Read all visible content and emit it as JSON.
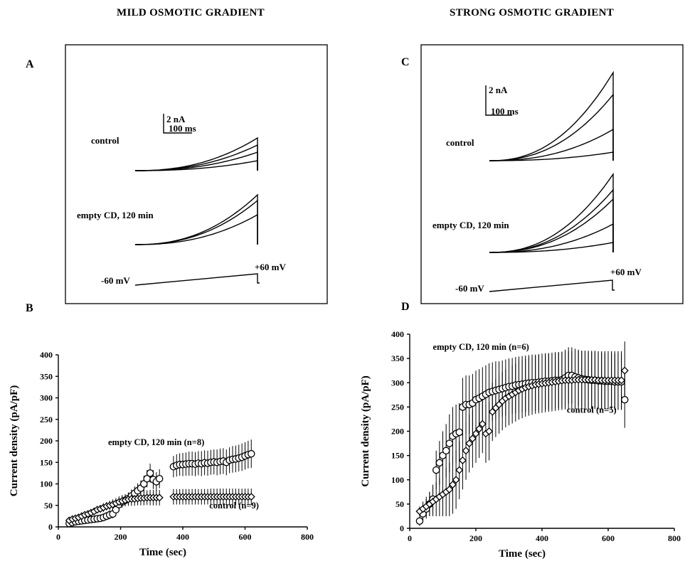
{
  "headings": {
    "left": "MILD OSMOTIC GRADIENT",
    "right": "STRONG OSMOTIC GRADIENT"
  },
  "panels": {
    "A": {
      "label": "A",
      "scalebar_current": "2 nA",
      "scalebar_time": "100 ms",
      "trace_label_1": "control",
      "trace_label_2": "empty CD, 120 min",
      "ramp_start": "-60 mV",
      "ramp_end": "+60 mV"
    },
    "B": {
      "label": "B"
    },
    "C": {
      "label": "C",
      "scalebar_current": "2 nA",
      "scalebar_time": "100 ms",
      "trace_label_1": "control",
      "trace_label_2": "empty CD, 120 min",
      "ramp_start": "-60 mV",
      "ramp_end": "+60 mV"
    },
    "D": {
      "label": "D"
    }
  },
  "chart_data": [
    {
      "type": "scatter",
      "panel": "B",
      "xlabel": "Time (sec)",
      "ylabel": "Current density (pA/pF)",
      "xlim": [
        0,
        800
      ],
      "ylim": [
        0,
        400
      ],
      "xticks": [
        0,
        200,
        400,
        600,
        800
      ],
      "yticks": [
        0,
        50,
        100,
        150,
        200,
        250,
        300,
        350,
        400
      ],
      "grid": false,
      "series": [
        {
          "name": "empty CD, 120 min (n=8)",
          "marker": "circle",
          "x": [
            35,
            45,
            55,
            65,
            75,
            85,
            95,
            105,
            115,
            125,
            135,
            145,
            155,
            165,
            175,
            185,
            195,
            205,
            215,
            225,
            235,
            245,
            255,
            265,
            275,
            285,
            295,
            305,
            315,
            325,
            370,
            380,
            390,
            400,
            410,
            420,
            430,
            440,
            450,
            460,
            470,
            480,
            490,
            500,
            510,
            520,
            530,
            540,
            550,
            560,
            570,
            580,
            590,
            600,
            610,
            620
          ],
          "y": [
            8,
            10,
            12,
            13,
            14,
            15,
            16,
            17,
            18,
            19,
            20,
            22,
            25,
            28,
            30,
            40,
            52,
            58,
            62,
            66,
            72,
            78,
            84,
            90,
            100,
            112,
            125,
            110,
            105,
            112,
            140,
            143,
            145,
            145,
            146,
            147,
            147,
            146,
            148,
            147,
            149,
            148,
            150,
            151,
            150,
            152,
            153,
            150,
            155,
            157,
            158,
            160,
            162,
            165,
            168,
            170
          ],
          "err": [
            5,
            5,
            5,
            6,
            6,
            6,
            7,
            7,
            7,
            8,
            8,
            9,
            9,
            10,
            10,
            11,
            12,
            13,
            13,
            14,
            15,
            16,
            17,
            18,
            19,
            20,
            22,
            22,
            22,
            22,
            25,
            26,
            26,
            27,
            27,
            28,
            28,
            28,
            28,
            29,
            29,
            29,
            29,
            29,
            30,
            30,
            30,
            30,
            30,
            31,
            31,
            31,
            32,
            32,
            32,
            33
          ]
        },
        {
          "name": "control (n=9)",
          "marker": "diamond",
          "x": [
            35,
            45,
            55,
            65,
            75,
            85,
            95,
            105,
            115,
            125,
            135,
            145,
            155,
            165,
            175,
            185,
            195,
            205,
            215,
            225,
            235,
            245,
            255,
            265,
            275,
            285,
            295,
            305,
            315,
            325,
            370,
            380,
            390,
            400,
            410,
            420,
            430,
            440,
            450,
            460,
            470,
            480,
            490,
            500,
            510,
            520,
            530,
            540,
            550,
            560,
            570,
            580,
            590,
            600,
            610,
            620
          ],
          "y": [
            15,
            18,
            20,
            22,
            25,
            28,
            30,
            33,
            36,
            40,
            42,
            45,
            48,
            50,
            52,
            55,
            58,
            60,
            62,
            64,
            65,
            65,
            66,
            67,
            67,
            68,
            68,
            68,
            68,
            68,
            70,
            70,
            70,
            70,
            70,
            70,
            70,
            70,
            70,
            70,
            70,
            70,
            70,
            70,
            70,
            70,
            70,
            70,
            70,
            70,
            70,
            70,
            70,
            70,
            70,
            70
          ],
          "err": [
            5,
            5,
            5,
            6,
            6,
            6,
            7,
            7,
            8,
            8,
            9,
            10,
            10,
            11,
            12,
            12,
            13,
            14,
            14,
            15,
            16,
            16,
            16,
            17,
            17,
            17,
            18,
            18,
            18,
            18,
            18,
            18,
            18,
            18,
            18,
            18,
            18,
            18,
            18,
            18,
            18,
            18,
            19,
            19,
            19,
            19,
            19,
            19,
            19,
            19,
            19,
            19,
            19,
            19,
            19,
            19
          ]
        }
      ],
      "annotations": [
        {
          "text": "empty CD, 120 min (n=8)",
          "x": 160,
          "y": 190
        },
        {
          "text": "control (n=9)",
          "x": 485,
          "y": 43
        }
      ]
    },
    {
      "type": "scatter",
      "panel": "D",
      "xlabel": "Time (sec)",
      "ylabel": "Current density (pA/pF)",
      "xlim": [
        0,
        800
      ],
      "ylim": [
        0,
        400
      ],
      "xticks": [
        0,
        200,
        400,
        600,
        800
      ],
      "yticks": [
        0,
        50,
        100,
        150,
        200,
        250,
        300,
        350,
        400
      ],
      "grid": false,
      "series": [
        {
          "name": "empty CD, 120 min (n=6)",
          "marker": "circle",
          "x": [
            30,
            40,
            50,
            60,
            70,
            80,
            90,
            100,
            110,
            120,
            130,
            140,
            150,
            160,
            170,
            180,
            190,
            200,
            210,
            220,
            230,
            240,
            250,
            260,
            270,
            280,
            290,
            300,
            310,
            320,
            330,
            340,
            350,
            360,
            370,
            380,
            390,
            400,
            410,
            420,
            430,
            440,
            450,
            460,
            470,
            480,
            490,
            500,
            510,
            520,
            530,
            540,
            550,
            560,
            570,
            580,
            590,
            600,
            610,
            620,
            630,
            640,
            650
          ],
          "y": [
            15,
            30,
            40,
            50,
            60,
            120,
            135,
            150,
            160,
            175,
            190,
            195,
            198,
            250,
            255,
            255,
            258,
            265,
            268,
            272,
            276,
            280,
            282,
            284,
            286,
            288,
            290,
            292,
            293,
            295,
            296,
            297,
            298,
            299,
            300,
            300,
            301,
            302,
            303,
            303,
            304,
            305,
            305,
            306,
            310,
            315,
            315,
            312,
            310,
            308,
            307,
            306,
            305,
            305,
            304,
            304,
            303,
            303,
            303,
            302,
            302,
            302,
            265
          ],
          "err": [
            10,
            15,
            20,
            25,
            30,
            40,
            45,
            50,
            55,
            60,
            60,
            60,
            60,
            60,
            60,
            60,
            60,
            60,
            60,
            60,
            60,
            60,
            60,
            60,
            58,
            58,
            58,
            58,
            58,
            58,
            58,
            58,
            58,
            58,
            58,
            58,
            58,
            58,
            58,
            58,
            58,
            58,
            58,
            58,
            58,
            58,
            58,
            58,
            58,
            58,
            58,
            58,
            58,
            58,
            58,
            58,
            58,
            58,
            58,
            58,
            58,
            58,
            58
          ]
        },
        {
          "name": "control (n=5)",
          "marker": "diamond",
          "x": [
            30,
            40,
            50,
            60,
            70,
            80,
            90,
            100,
            110,
            120,
            130,
            140,
            150,
            160,
            170,
            180,
            190,
            200,
            210,
            220,
            230,
            240,
            250,
            260,
            270,
            280,
            290,
            300,
            310,
            320,
            330,
            340,
            350,
            360,
            370,
            380,
            390,
            400,
            410,
            420,
            430,
            440,
            450,
            460,
            470,
            480,
            490,
            500,
            510,
            520,
            530,
            540,
            550,
            560,
            570,
            580,
            590,
            600,
            610,
            620,
            630,
            640,
            650
          ],
          "y": [
            35,
            40,
            45,
            50,
            55,
            60,
            65,
            70,
            75,
            80,
            90,
            100,
            120,
            140,
            160,
            175,
            185,
            195,
            205,
            215,
            195,
            200,
            240,
            248,
            255,
            262,
            268,
            272,
            276,
            280,
            284,
            287,
            290,
            292,
            294,
            296,
            297,
            298,
            299,
            300,
            301,
            302,
            303,
            304,
            305,
            305,
            305,
            306,
            306,
            306,
            306,
            306,
            306,
            306,
            305,
            305,
            305,
            305,
            305,
            305,
            305,
            305,
            325
          ],
          "err": [
            10,
            15,
            20,
            25,
            30,
            35,
            40,
            45,
            50,
            55,
            60,
            60,
            60,
            60,
            60,
            60,
            60,
            60,
            60,
            60,
            60,
            60,
            60,
            60,
            60,
            60,
            60,
            60,
            60,
            60,
            60,
            60,
            60,
            60,
            60,
            60,
            60,
            60,
            60,
            60,
            60,
            60,
            60,
            60,
            60,
            60,
            60,
            60,
            60,
            60,
            60,
            60,
            60,
            60,
            60,
            60,
            60,
            60,
            60,
            60,
            60,
            60,
            60
          ]
        }
      ],
      "annotations": [
        {
          "text": "empty CD, 120 min (n=6)",
          "x": 70,
          "y": 368
        },
        {
          "text": "control (n=5)",
          "x": 475,
          "y": 238
        }
      ]
    }
  ]
}
